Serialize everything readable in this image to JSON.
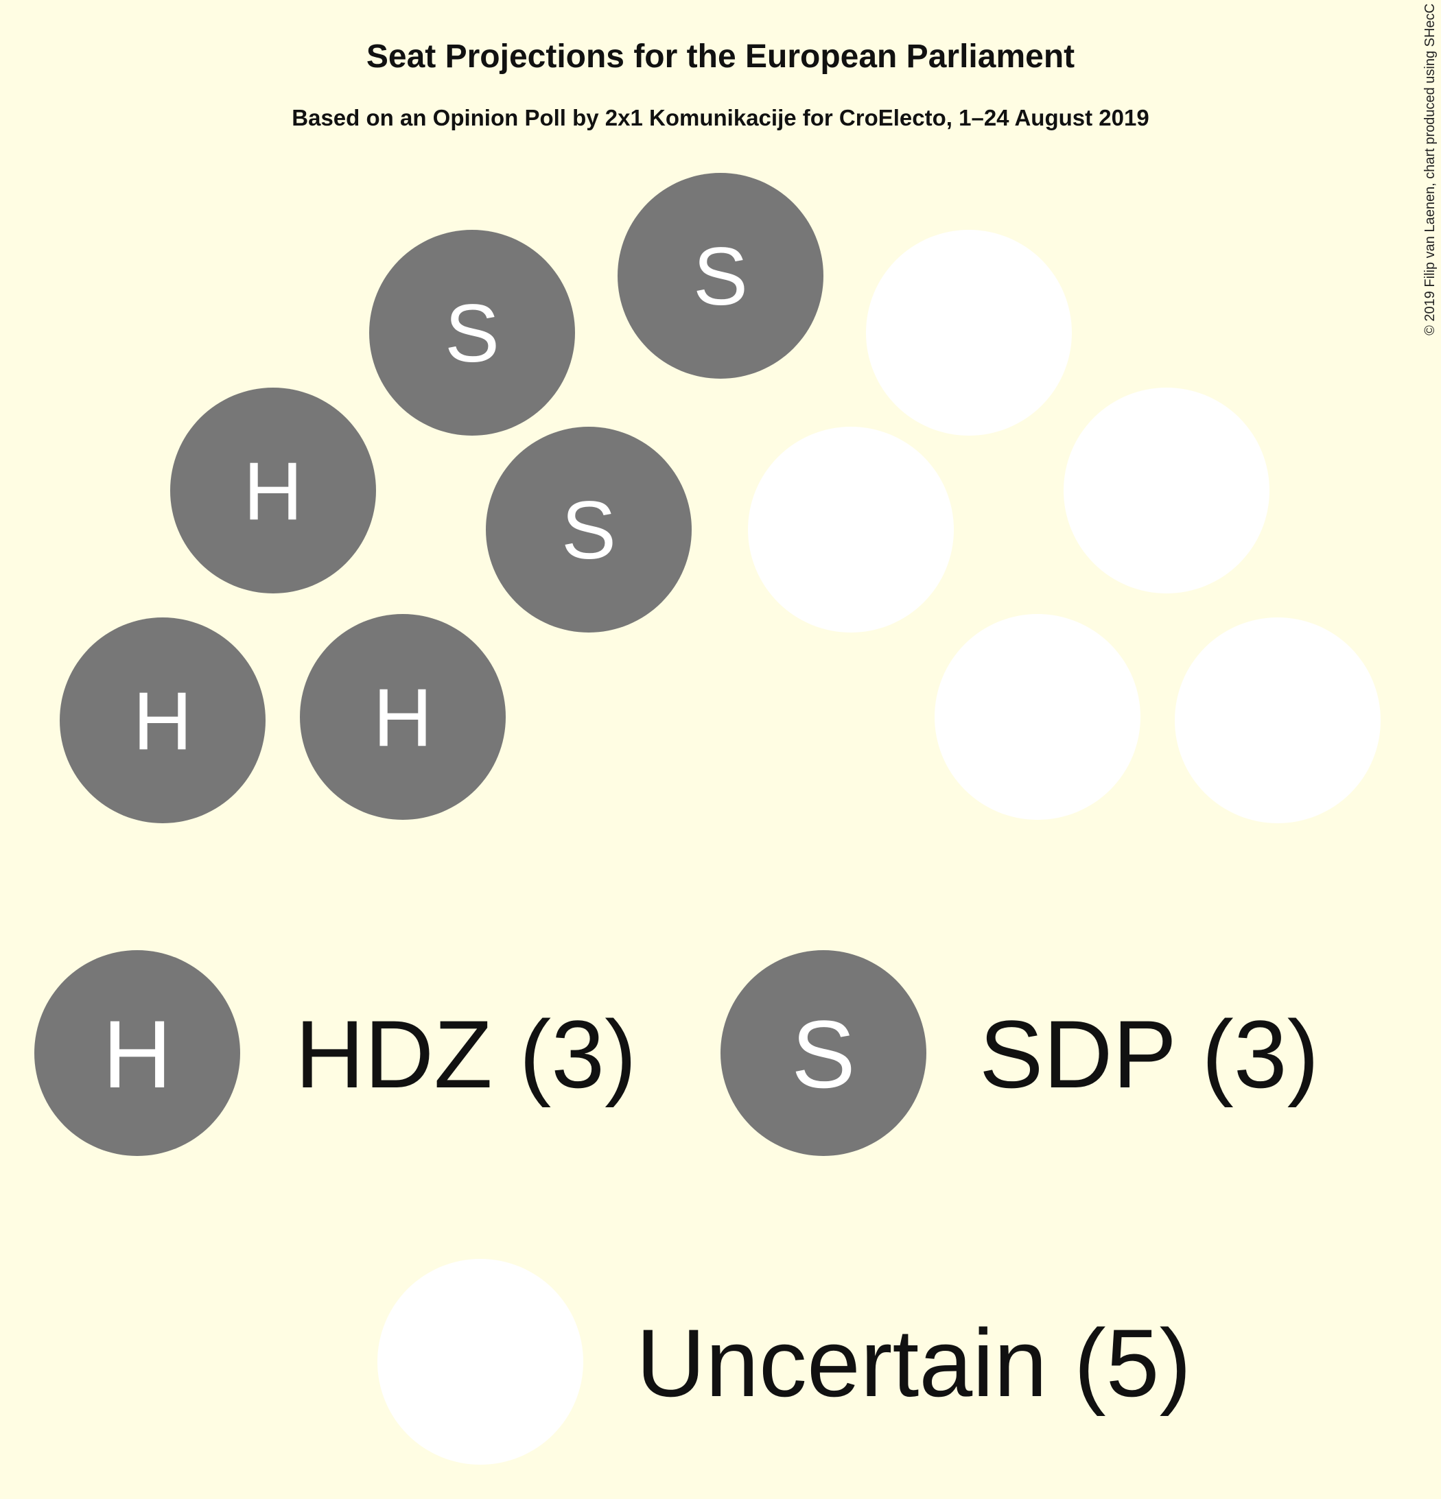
{
  "chart_data": {
    "type": "parliament",
    "title": "Seat Projections for the European Parliament",
    "subtitle": "Based on an Opinion Poll by 2x1 Komunikacije for CroElecto, 1–24 August 2019",
    "credit": "© 2019 Filip van Laenen, chart produced using SHecC",
    "total_seats": 11,
    "parties": [
      {
        "name": "HDZ",
        "seats": 3,
        "symbol": "H",
        "color": "#777777",
        "label": "HDZ (3)"
      },
      {
        "name": "SDP",
        "seats": 3,
        "symbol": "S",
        "color": "#777777",
        "label": "SDP (3)"
      },
      {
        "name": "Uncertain",
        "seats": 5,
        "symbol": "",
        "color": "#ffffff",
        "label": "Uncertain (5)"
      }
    ],
    "seats": [
      {
        "party": "HDZ",
        "symbol": "H"
      },
      {
        "party": "HDZ",
        "symbol": "H"
      },
      {
        "party": "HDZ",
        "symbol": "H"
      },
      {
        "party": "SDP",
        "symbol": "S"
      },
      {
        "party": "SDP",
        "symbol": "S"
      },
      {
        "party": "SDP",
        "symbol": "S"
      },
      {
        "party": "Uncertain",
        "symbol": ""
      },
      {
        "party": "Uncertain",
        "symbol": ""
      },
      {
        "party": "Uncertain",
        "symbol": ""
      },
      {
        "party": "Uncertain",
        "symbol": ""
      },
      {
        "party": "Uncertain",
        "symbol": ""
      }
    ]
  }
}
